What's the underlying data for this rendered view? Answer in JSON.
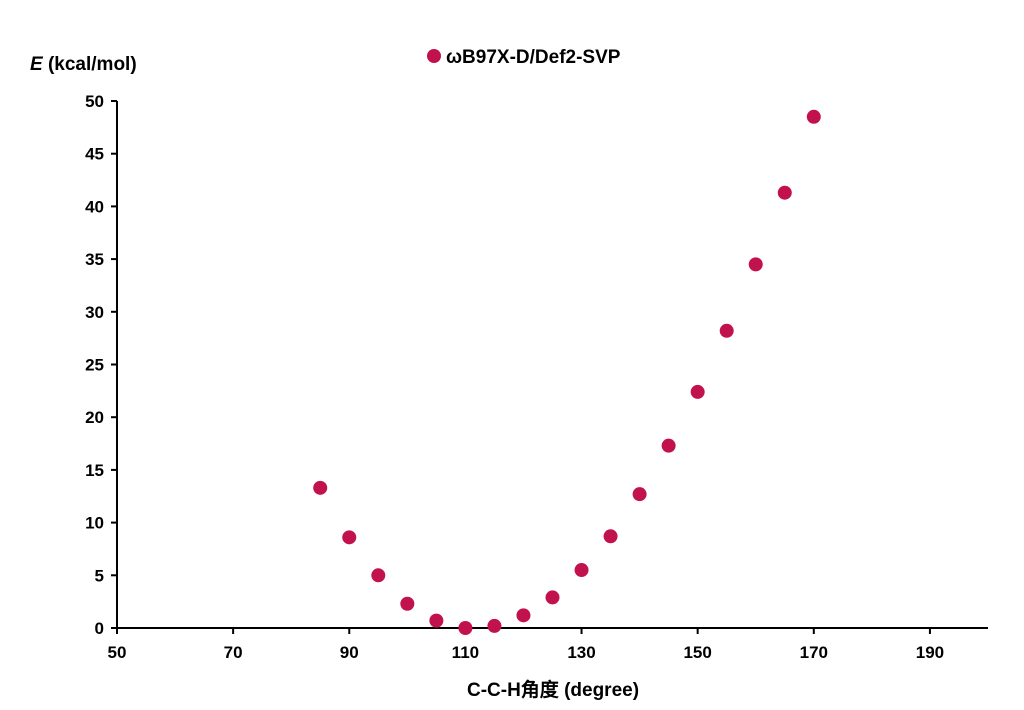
{
  "chart_data": {
    "type": "scatter",
    "ylabel_var": "E",
    "ylabel_unit": " (kcal/mol)",
    "xlabel": "C-C-H角度 (degree)",
    "xlim": [
      50,
      200
    ],
    "ylim": [
      0,
      50
    ],
    "xticks": [
      50,
      70,
      90,
      110,
      130,
      150,
      170,
      190
    ],
    "yticks": [
      0,
      5,
      10,
      15,
      20,
      25,
      30,
      35,
      40,
      45,
      50
    ],
    "grid": false,
    "legend_position": "top-center",
    "series": [
      {
        "name": "ωB97X-D/Def2-SVP",
        "color": "#C2124D",
        "x": [
          85,
          90,
          95,
          100,
          105,
          110,
          115,
          120,
          125,
          130,
          135,
          140,
          145,
          150,
          155,
          160,
          165,
          170
        ],
        "y": [
          13.3,
          8.6,
          5.0,
          2.3,
          0.7,
          0.0,
          0.2,
          1.2,
          2.9,
          5.5,
          8.7,
          12.7,
          17.3,
          22.4,
          28.2,
          34.5,
          41.3,
          48.5
        ]
      }
    ]
  }
}
